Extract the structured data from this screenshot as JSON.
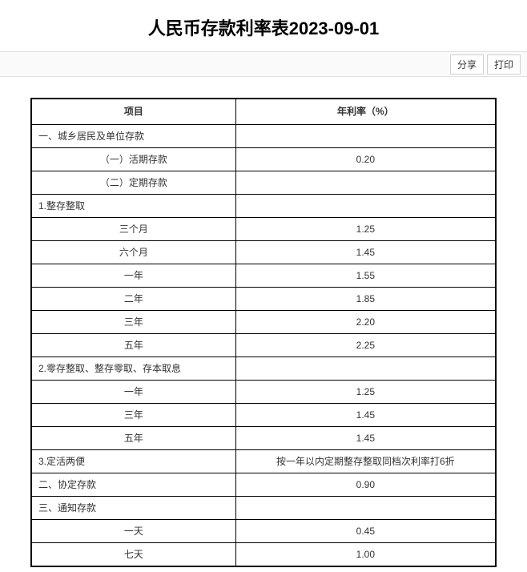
{
  "title": "人民币存款利率表2023-09-01",
  "actions": {
    "share": "分享",
    "print": "打印"
  },
  "table": {
    "headers": {
      "item": "项目",
      "rate": "年利率（%）"
    },
    "rows": [
      {
        "item": "一、城乡居民及单位存款",
        "rate": "",
        "align": "left"
      },
      {
        "item": "（一）活期存款",
        "rate": "0.20",
        "align": "center"
      },
      {
        "item": "（二）定期存款",
        "rate": "",
        "align": "center"
      },
      {
        "item": "1.整存整取",
        "rate": "",
        "align": "left"
      },
      {
        "item": "三个月",
        "rate": "1.25",
        "align": "center"
      },
      {
        "item": "六个月",
        "rate": "1.45",
        "align": "center"
      },
      {
        "item": "一年",
        "rate": "1.55",
        "align": "center"
      },
      {
        "item": "二年",
        "rate": "1.85",
        "align": "center"
      },
      {
        "item": "三年",
        "rate": "2.20",
        "align": "center"
      },
      {
        "item": "五年",
        "rate": "2.25",
        "align": "center"
      },
      {
        "item": "2.零存整取、整存零取、存本取息",
        "rate": "",
        "align": "left"
      },
      {
        "item": "一年",
        "rate": "1.25",
        "align": "center"
      },
      {
        "item": "三年",
        "rate": "1.45",
        "align": "center"
      },
      {
        "item": "五年",
        "rate": "1.45",
        "align": "center"
      },
      {
        "item": "3.定活两便",
        "rate": "按一年以内定期整存整取同档次利率打6折",
        "align": "left"
      },
      {
        "item": "二、协定存款",
        "rate": "0.90",
        "align": "left"
      },
      {
        "item": "三、通知存款",
        "rate": "",
        "align": "left"
      },
      {
        "item": "一天",
        "rate": "0.45",
        "align": "center"
      },
      {
        "item": "七天",
        "rate": "1.00",
        "align": "center"
      }
    ]
  }
}
